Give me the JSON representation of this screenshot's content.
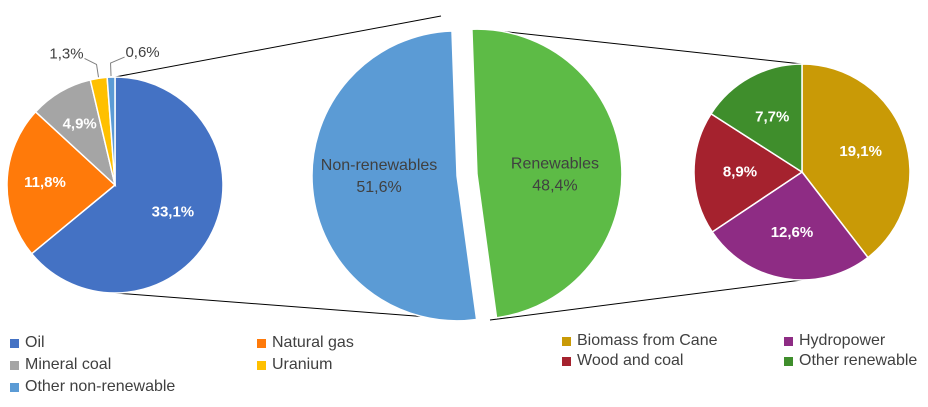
{
  "chart_data": [
    {
      "type": "pie",
      "series": [
        {
          "name": "Oil",
          "value": 33.1,
          "label": "33,1%",
          "color": "#4472C4"
        },
        {
          "name": "Natural gas",
          "value": 11.8,
          "label": "11,8%",
          "color": "#FF7A0A"
        },
        {
          "name": "Mineral coal",
          "value": 4.9,
          "label": "4,9%",
          "color": "#A5A5A5"
        },
        {
          "name": "Uranium",
          "value": 1.3,
          "label": "1,3%",
          "color": "#FFC000"
        },
        {
          "name": "Other non-renewable",
          "value": 0.6,
          "label": "0,6%",
          "color": "#5B9BD5"
        }
      ]
    },
    {
      "type": "pie",
      "series": [
        {
          "name": "Non-renewables",
          "value": 51.6,
          "label": "51,6%",
          "color": "#5B9BD5"
        },
        {
          "name": "Renewables",
          "value": 48.4,
          "label": "48,4%",
          "color": "#5DBB46"
        }
      ]
    },
    {
      "type": "pie",
      "series": [
        {
          "name": "Biomass from Cane",
          "value": 19.1,
          "label": "19,1%",
          "color": "#C99A06"
        },
        {
          "name": "Hydropower",
          "value": 12.6,
          "label": "12,6%",
          "color": "#8E2C84"
        },
        {
          "name": "Wood and coal",
          "value": 8.9,
          "label": "8,9%",
          "color": "#A5222E"
        },
        {
          "name": "Other renewable",
          "value": 7.7,
          "label": "7,7%",
          "color": "#3F8E2C"
        }
      ]
    }
  ],
  "legend_left": [
    {
      "label": "Oil",
      "color": "#4472C4"
    },
    {
      "label": "Natural gas",
      "color": "#FF7A0A"
    },
    {
      "label": "Mineral coal",
      "color": "#A5A5A5"
    },
    {
      "label": "Uranium",
      "color": "#FFC000"
    },
    {
      "label": "Other non-renewable",
      "color": "#5B9BD5"
    }
  ],
  "legend_right": [
    {
      "label": "Biomass from Cane",
      "color": "#C99A06"
    },
    {
      "label": "Hydropower",
      "color": "#8E2C84"
    },
    {
      "label": "Wood and coal",
      "color": "#A5222E"
    },
    {
      "label": "Other renewable",
      "color": "#3F8E2C"
    }
  ]
}
